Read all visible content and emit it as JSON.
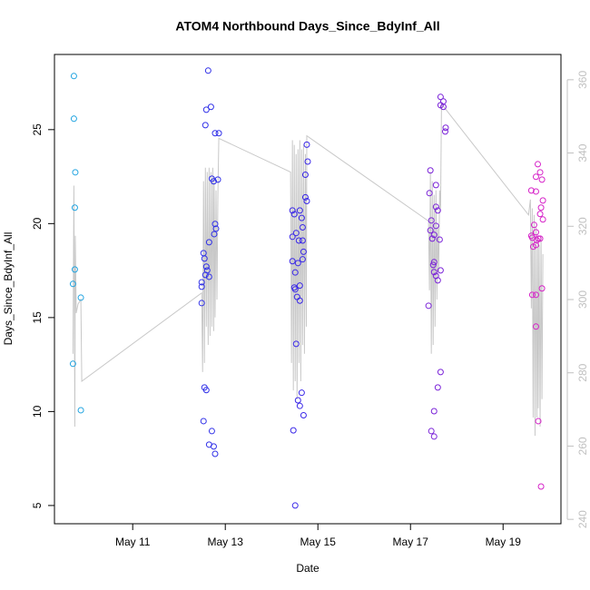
{
  "chart_data": {
    "type": "scatter",
    "title": "ATOM4 Northbound Days_Since_BdyInf_All",
    "xlabel": "Date",
    "ylabel": "Days_Since_BdyInf_All",
    "xlim": [
      9.31,
      20.25
    ],
    "ylim": [
      4.03,
      29.0
    ],
    "y2lim": [
      238.8,
      366.9
    ],
    "xticks": [
      {
        "value": 11,
        "label": "May 11"
      },
      {
        "value": 13,
        "label": "May 13"
      },
      {
        "value": 15,
        "label": "May 15"
      },
      {
        "value": 17,
        "label": "May 17"
      },
      {
        "value": 19,
        "label": "May 19"
      }
    ],
    "yticks": [
      5,
      10,
      15,
      20,
      25
    ],
    "y2ticks": [
      240,
      260,
      280,
      300,
      320,
      340,
      360
    ],
    "series": [
      {
        "color": "#1fa3e0",
        "x": [
          9.73,
          9.73,
          9.76,
          9.75,
          9.75,
          9.71,
          9.88,
          9.71,
          9.88
        ],
        "values": [
          27.85,
          25.58,
          22.73,
          20.85,
          17.56,
          16.79,
          16.06,
          12.54,
          10.07
        ]
      },
      {
        "color": "#3030e8",
        "x": [
          12.63,
          12.59,
          12.69,
          12.57,
          12.78,
          12.86,
          12.71,
          12.75,
          12.84,
          12.78,
          12.8,
          12.76,
          12.65,
          12.53,
          12.55,
          12.49,
          12.49,
          12.61,
          12.59,
          12.57,
          12.65,
          12.49,
          12.55,
          12.59,
          12.53,
          12.71,
          12.75,
          12.65,
          12.78
        ],
        "values": [
          28.14,
          26.06,
          26.21,
          25.24,
          24.81,
          24.81,
          22.39,
          22.25,
          22.34,
          19.98,
          19.73,
          19.44,
          19.01,
          18.43,
          18.14,
          16.88,
          16.64,
          17.51,
          17.71,
          17.27,
          17.17,
          15.77,
          11.28,
          11.14,
          9.49,
          8.96,
          8.14,
          8.24,
          7.75
        ]
      },
      {
        "color": "#3a28e8",
        "x": [
          14.76,
          14.78,
          14.73,
          14.73,
          14.76,
          14.45,
          14.61,
          14.65,
          14.67,
          14.49,
          14.53,
          14.45,
          14.59,
          14.67,
          14.69,
          14.67,
          14.45,
          14.57,
          14.51,
          14.61,
          14.49,
          14.51,
          14.55,
          14.61,
          14.53,
          14.65,
          14.57,
          14.61,
          14.69,
          14.47,
          14.51
        ],
        "values": [
          24.2,
          23.3,
          22.6,
          21.4,
          21.2,
          20.7,
          20.7,
          20.3,
          19.8,
          20.5,
          19.5,
          19.3,
          19.1,
          19.1,
          18.5,
          18.1,
          18.0,
          17.9,
          17.4,
          16.7,
          16.6,
          16.5,
          16.1,
          15.9,
          13.6,
          11.0,
          10.6,
          10.3,
          9.8,
          9.0,
          5.0
        ]
      },
      {
        "color": "#7a22d8",
        "x": [
          17.65,
          17.71,
          17.65,
          17.71,
          17.76,
          17.75,
          17.43,
          17.55,
          17.41,
          17.55,
          17.59,
          17.45,
          17.55,
          17.43,
          17.51,
          17.47,
          17.63,
          17.51,
          17.49,
          17.51,
          17.55,
          17.65,
          17.59,
          17.39,
          17.59,
          17.65,
          17.51,
          17.45,
          17.51
        ],
        "values": [
          26.74,
          26.5,
          26.3,
          26.21,
          25.1,
          24.9,
          22.83,
          22.05,
          21.62,
          20.89,
          20.7,
          20.17,
          19.88,
          19.64,
          19.4,
          19.2,
          19.15,
          17.95,
          17.8,
          17.42,
          17.22,
          17.51,
          16.98,
          15.63,
          11.28,
          12.1,
          10.02,
          8.96,
          8.67
        ]
      },
      {
        "color": "#d622c8",
        "x": [
          19.75,
          19.8,
          19.71,
          19.84,
          19.61,
          19.71,
          19.86,
          19.82,
          19.8,
          19.86,
          19.67,
          19.61,
          19.63,
          19.71,
          19.73,
          19.76,
          19.8,
          19.71,
          19.65,
          19.63,
          19.71,
          19.84,
          19.71,
          19.76,
          19.82
        ],
        "values": [
          23.16,
          22.73,
          22.49,
          22.34,
          21.76,
          21.71,
          21.23,
          20.85,
          20.51,
          20.22,
          19.93,
          19.35,
          19.25,
          19.54,
          19.11,
          19.2,
          19.2,
          18.86,
          18.77,
          16.21,
          16.21,
          16.55,
          14.52,
          9.49,
          6.01
        ]
      },
      {
        "type": "line",
        "axis": "y2",
        "color": "#c8c8c8",
        "x": [
          9.71,
          9.73,
          9.75,
          9.76,
          9.78,
          9.82,
          9.88,
          9.9,
          12.49,
          12.51,
          12.53,
          12.55,
          12.57,
          12.59,
          12.61,
          12.63,
          12.65,
          12.67,
          12.69,
          12.71,
          12.73,
          12.75,
          12.76,
          12.78,
          12.8,
          12.82,
          12.84,
          12.86,
          14.41,
          14.43,
          14.45,
          14.47,
          14.49,
          14.51,
          14.53,
          14.55,
          14.57,
          14.59,
          14.61,
          14.63,
          14.65,
          14.67,
          14.69,
          14.71,
          14.73,
          14.75,
          14.76,
          17.39,
          17.41,
          17.43,
          17.45,
          17.47,
          17.49,
          17.51,
          17.53,
          17.55,
          17.57,
          17.59,
          17.61,
          17.63,
          17.65,
          17.67,
          19.55,
          19.59,
          19.61,
          19.63,
          19.65,
          19.67,
          19.69,
          19.71,
          19.73,
          19.75,
          19.76,
          19.78,
          19.8,
          19.82,
          19.84,
          19.86
        ],
        "values": [
          285.2,
          331.1,
          265.3,
          317.4,
          296.3,
          298.8,
          300.0,
          277.7,
          301.8,
          280.2,
          332.3,
          282.7,
          336.0,
          292.6,
          334.8,
          287.6,
          336.0,
          290.1,
          334.8,
          292.6,
          336.0,
          291.4,
          333.5,
          295.1,
          329.8,
          300.0,
          328.6,
          344.0,
          334.8,
          282.7,
          343.5,
          275.2,
          342.2,
          277.7,
          339.7,
          272.8,
          341.0,
          282.7,
          343.5,
          277.7,
          341.0,
          287.6,
          342.2,
          285.2,
          339.7,
          292.6,
          344.7,
          321.4,
          302.5,
          334.8,
          285.2,
          332.3,
          287.6,
          328.6,
          292.6,
          329.8,
          300.0,
          319.9,
          307.5,
          329.8,
          324.9,
          353.4,
          323.1,
          327.3,
          297.6,
          324.9,
          267.8,
          323.1,
          262.8,
          319.9,
          267.8,
          317.4,
          270.3,
          314.9,
          265.3,
          317.4,
          272.8,
          312.4
        ]
      }
    ]
  }
}
